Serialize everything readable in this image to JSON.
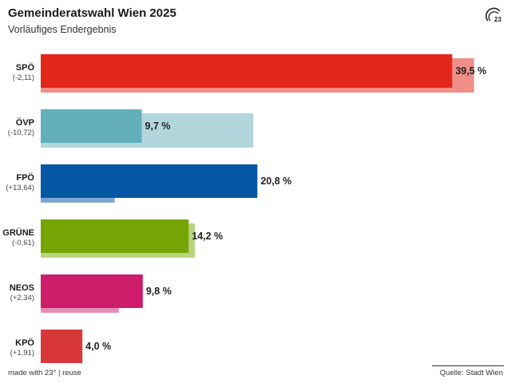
{
  "title": "Gemeinderatswahl Wien 2025",
  "subtitle": "Vorläufiges Endergebnis",
  "logo_text": "23°",
  "footer": {
    "made_with": "made with 23°",
    "separator": "|",
    "reuse": "reuse",
    "source": "Quelle: Stadt Wien"
  },
  "chart_data": {
    "type": "bar",
    "orientation": "horizontal",
    "categories": [
      "SPÖ",
      "ÖVP",
      "FPÖ",
      "GRÜNE",
      "NEOS",
      "KPÖ"
    ],
    "changes": [
      "(-2,11)",
      "(-10,72)",
      "(+13,64)",
      "(-0,61)",
      "(+2,34)",
      "(+1,91)"
    ],
    "series": [
      {
        "name": "",
        "values": [
          39.5,
          9.7,
          20.8,
          14.2,
          9.8,
          4.0
        ]
      },
      {
        "name": "",
        "values": [
          41.6,
          20.4,
          7.1,
          14.8,
          7.5,
          2.1
        ]
      }
    ],
    "value_labels": [
      "39,5 %",
      "9,7 %",
      "20,8 %",
      "14,2 %",
      "9,8 %",
      "4,0 %"
    ],
    "colors": [
      "#e3261a",
      "#63b0bb",
      "#0457a3",
      "#74a504",
      "#cd1c6a",
      "#d9383a"
    ],
    "prev_colors": [
      "#f08f88",
      "#b1d7dd",
      "#7ea8d1",
      "#b9d47e",
      "#e68db3",
      "#eb9c9d"
    ],
    "xlim": [
      0,
      43
    ],
    "grid": false,
    "legend": "none"
  }
}
